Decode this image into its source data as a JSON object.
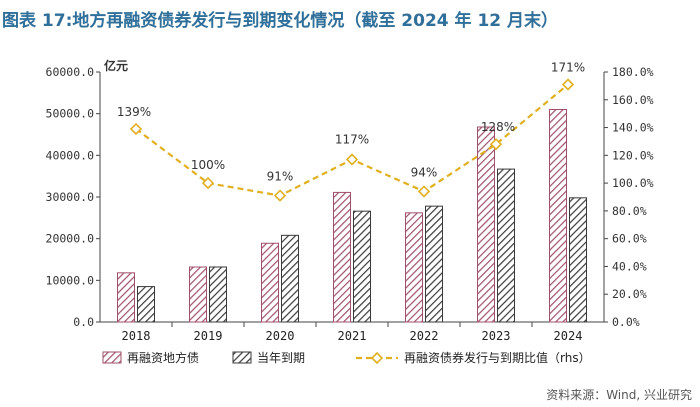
{
  "figure_title": "图表 17:地方再融资债券发行与到期变化情况（截至 2024 年 12 月末）",
  "source_text": "资料来源：Wind, 兴业研究",
  "colors": {
    "title": "#2f6f9a",
    "refinance_bar": "#a0506a",
    "maturity_bar": "#3a3a3a",
    "ratio_line": "#e0b020",
    "axis": "#444444"
  },
  "chart_data": {
    "type": "bar",
    "categories": [
      "2018",
      "2019",
      "2020",
      "2021",
      "2022",
      "2023",
      "2024"
    ],
    "ylabel": "亿元",
    "ylim": [
      0,
      60000
    ],
    "yticks": [
      "0.0",
      "10000.0",
      "20000.0",
      "30000.0",
      "40000.0",
      "50000.0",
      "60000.0"
    ],
    "y2lim": [
      0,
      180
    ],
    "y2ticks": [
      "0.0%",
      "20.0%",
      "40.0%",
      "60.0%",
      "80.0%",
      "100.0%",
      "120.0%",
      "140.0%",
      "160.0%",
      "180.0%"
    ],
    "series": [
      {
        "name": "再融资地方债",
        "type": "bar",
        "axis": "left",
        "values": [
          11800,
          13200,
          18900,
          31100,
          26200,
          46800,
          51000
        ]
      },
      {
        "name": "当年到期",
        "type": "bar",
        "axis": "left",
        "values": [
          8500,
          13200,
          20800,
          26600,
          27800,
          36700,
          29800
        ]
      },
      {
        "name": "再融资债券发行与到期比值（rhs）",
        "type": "line",
        "axis": "right",
        "values": [
          139,
          100,
          91,
          117,
          94,
          128,
          171
        ],
        "labels": [
          "139%",
          "100%",
          "91%",
          "117%",
          "94%",
          "128%",
          "171%"
        ]
      }
    ],
    "grid": false,
    "legend_position": "bottom"
  }
}
